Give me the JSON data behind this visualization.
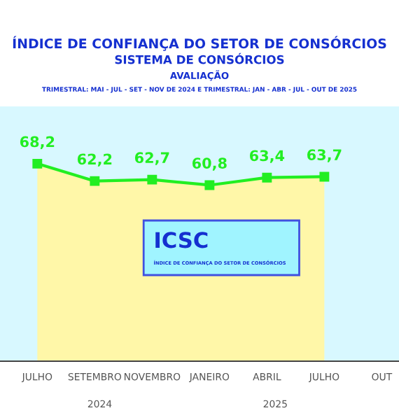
{
  "chart_data": {
    "type": "area",
    "title": "ÍNDICE DE CONFIANÇA DO SETOR DE CONSÓRCIOS",
    "subtitle": "SISTEMA DE CONSÓRCIOS\nAVALIAÇÃO\nTRIMESTRAL: MAI - JUL - SET - NOV DE 2024 E TRIMESTRAL: JAN - ABR - JUL - OUT DE 2025",
    "categories": [
      "JULHO",
      "SETEMBRO",
      "NOVEMBRO",
      "JANEIRO",
      "ABRIL",
      "JULHO",
      "OUT"
    ],
    "series": [
      {
        "color": "#22ee22",
        "values": [
          68.2,
          62.2,
          62.7,
          60.8,
          63.4,
          63.7,
          null
        ],
        "value_labels": [
          "68,2",
          "62,2",
          "62,7",
          "60,8",
          "63,4",
          "63,7",
          null
        ]
      }
    ],
    "marker": "square",
    "grid": false,
    "legend": false,
    "tick_labels": "x",
    "annotations": [
      "ICSC",
      "ÍNDICE DE CONFIANÇA DO SETOR DE CONSÓRCIOS",
      "2024",
      "2025"
    ]
  }
}
